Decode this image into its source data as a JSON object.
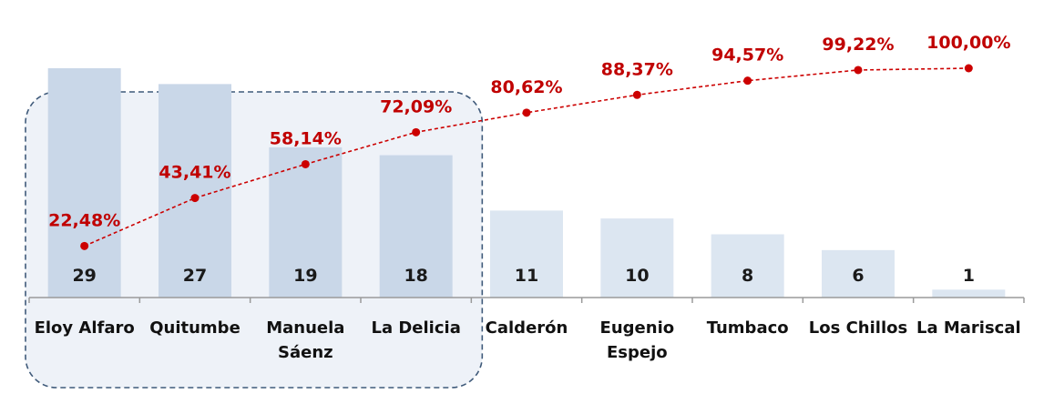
{
  "chart_data": {
    "type": "bar",
    "title": "",
    "xlabel": "",
    "ylabel": "",
    "categories": [
      [
        "Eloy Alfaro"
      ],
      [
        "Quitumbe"
      ],
      [
        "Manuela",
        "Sáenz"
      ],
      [
        "La Delicia"
      ],
      [
        "Calderón"
      ],
      [
        "Eugenio",
        "Espejo"
      ],
      [
        "Tumbaco"
      ],
      [
        "Los Chillos"
      ],
      [
        "La Mariscal"
      ]
    ],
    "series": [
      {
        "type": "bar",
        "values": [
          29,
          27,
          19,
          18,
          11,
          10,
          8,
          6,
          1
        ],
        "labels": [
          "29",
          "27",
          "19",
          "18",
          "11",
          "10",
          "8",
          "6",
          "1"
        ]
      },
      {
        "type": "line",
        "axis": "secondary",
        "values": [
          22.48,
          43.41,
          58.14,
          72.09,
          80.62,
          88.37,
          94.57,
          99.22,
          100.0
        ],
        "labels": [
          "22,48%",
          "43,41%",
          "58,14%",
          "72,09%",
          "80,62%",
          "88,37%",
          "94,57%",
          "99,22%",
          "100,00%"
        ]
      }
    ],
    "highlight": {
      "from_category": 0,
      "to_category": 3
    },
    "ylim": [
      0,
      29
    ],
    "y2lim": [
      0,
      100
    ],
    "grid": false,
    "legend": "none",
    "colors": {
      "bar": "#dce6f1",
      "bar_highlighted": "#c9d7e8",
      "highlight_region": "#eef2f8",
      "highlight_border": "#3f5a7a",
      "line": "#cc0000",
      "value_text": "#1a1a1a",
      "pct_text": "#c00000",
      "axis": "#9a9a9a",
      "category_text": "#111111"
    }
  }
}
